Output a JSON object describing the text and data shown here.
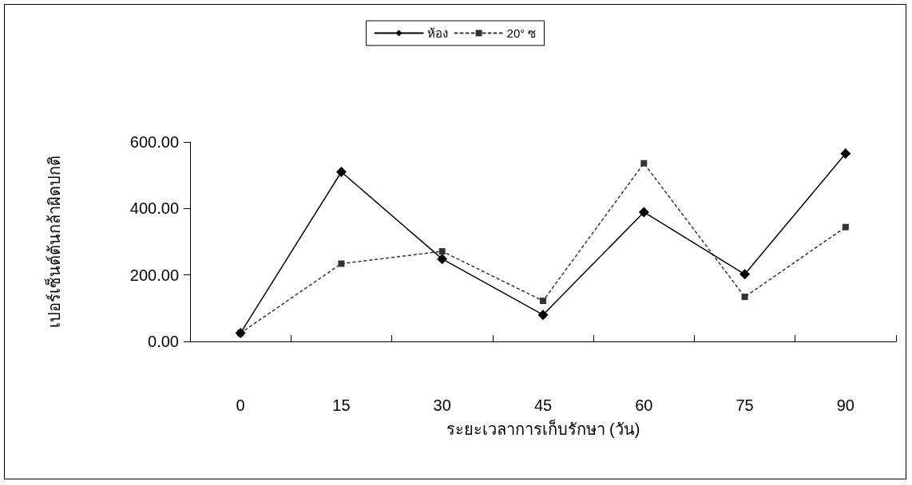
{
  "chart_data": {
    "type": "line",
    "xlabel": "ระยะเวลาการเก็บรักษา (วัน)",
    "ylabel": "เปอร์เซ็นต์ต้นกล้าผิดปกติ",
    "categories": [
      "0",
      "15",
      "30",
      "45",
      "60",
      "75",
      "90"
    ],
    "series": [
      {
        "name": "ห้อง",
        "color": "#000000",
        "marker": "diamond",
        "line_style": "solid",
        "values": [
          25,
          510,
          248,
          80,
          389,
          202,
          565
        ]
      },
      {
        "name": "20° ซ",
        "color": "#333333",
        "marker": "square",
        "line_style": "dotted",
        "values": [
          25,
          234,
          271,
          122,
          536,
          134,
          344
        ]
      }
    ],
    "ylim": [
      0,
      600
    ],
    "yticks": [
      {
        "value": 0,
        "label": "0.00"
      },
      {
        "value": 200,
        "label": "200.00"
      },
      {
        "value": 400,
        "label": "400.00"
      },
      {
        "value": 600,
        "label": "600.00"
      }
    ],
    "grid": false,
    "legend": "top"
  }
}
